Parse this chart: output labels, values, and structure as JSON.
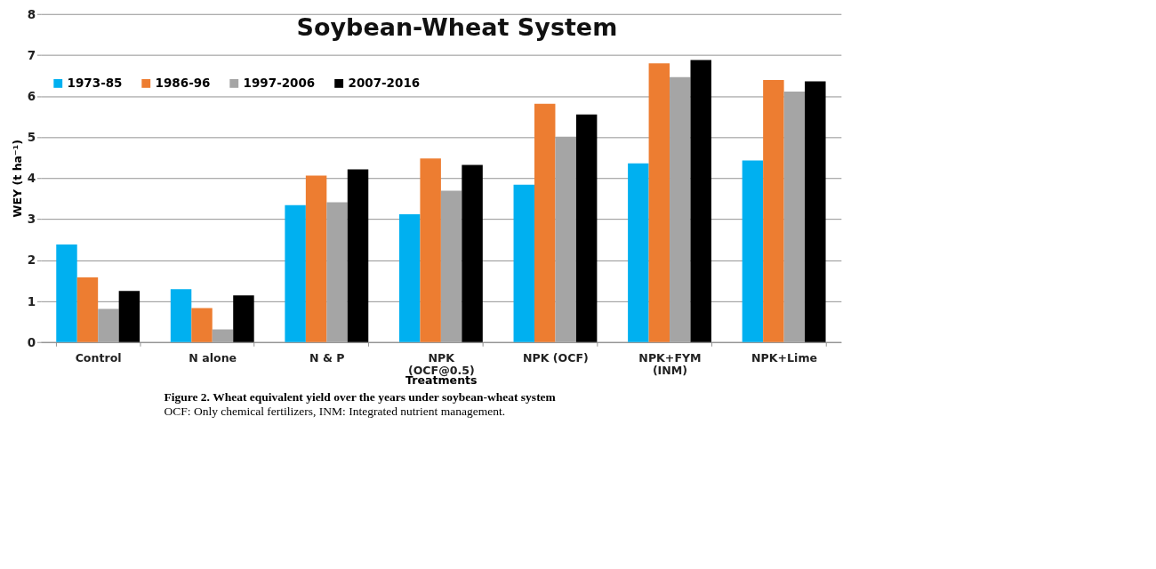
{
  "chart_data": {
    "type": "bar",
    "title": "Soybean-Wheat System",
    "xlabel": "Treatments",
    "ylabel": "WEY (t ha⁻¹)",
    "categories": [
      "Control",
      "N alone",
      "N & P",
      "NPK\n(OCF@0.5)",
      "NPK (OCF)",
      "NPK+FYM\n(INM)",
      "NPK+Lime"
    ],
    "series": [
      {
        "name": "1973-85",
        "color": "#00b0f0",
        "values": [
          2.38,
          1.29,
          3.34,
          3.12,
          3.84,
          4.36,
          4.43
        ]
      },
      {
        "name": "1986-96",
        "color": "#ed7d31",
        "values": [
          1.58,
          0.83,
          4.06,
          4.48,
          5.81,
          6.8,
          6.39
        ]
      },
      {
        "name": "1997-2006",
        "color": "#a5a5a5",
        "values": [
          0.81,
          0.31,
          3.41,
          3.69,
          5.01,
          6.46,
          6.11
        ]
      },
      {
        "name": "2007-2016",
        "color": "#000000",
        "values": [
          1.25,
          1.14,
          4.21,
          4.32,
          5.55,
          6.88,
          6.36
        ]
      }
    ],
    "ylim": [
      0,
      8
    ],
    "yticks": [
      0,
      1,
      2,
      3,
      4,
      5,
      6,
      7,
      8
    ],
    "grid": "y",
    "legend": "top left",
    "annotations": [
      "Figure 2.  Wheat equivalent yield over the years under soybean-wheat system",
      "OCF: Only chemical fertilizers, INM: Integrated nutrient management."
    ]
  }
}
